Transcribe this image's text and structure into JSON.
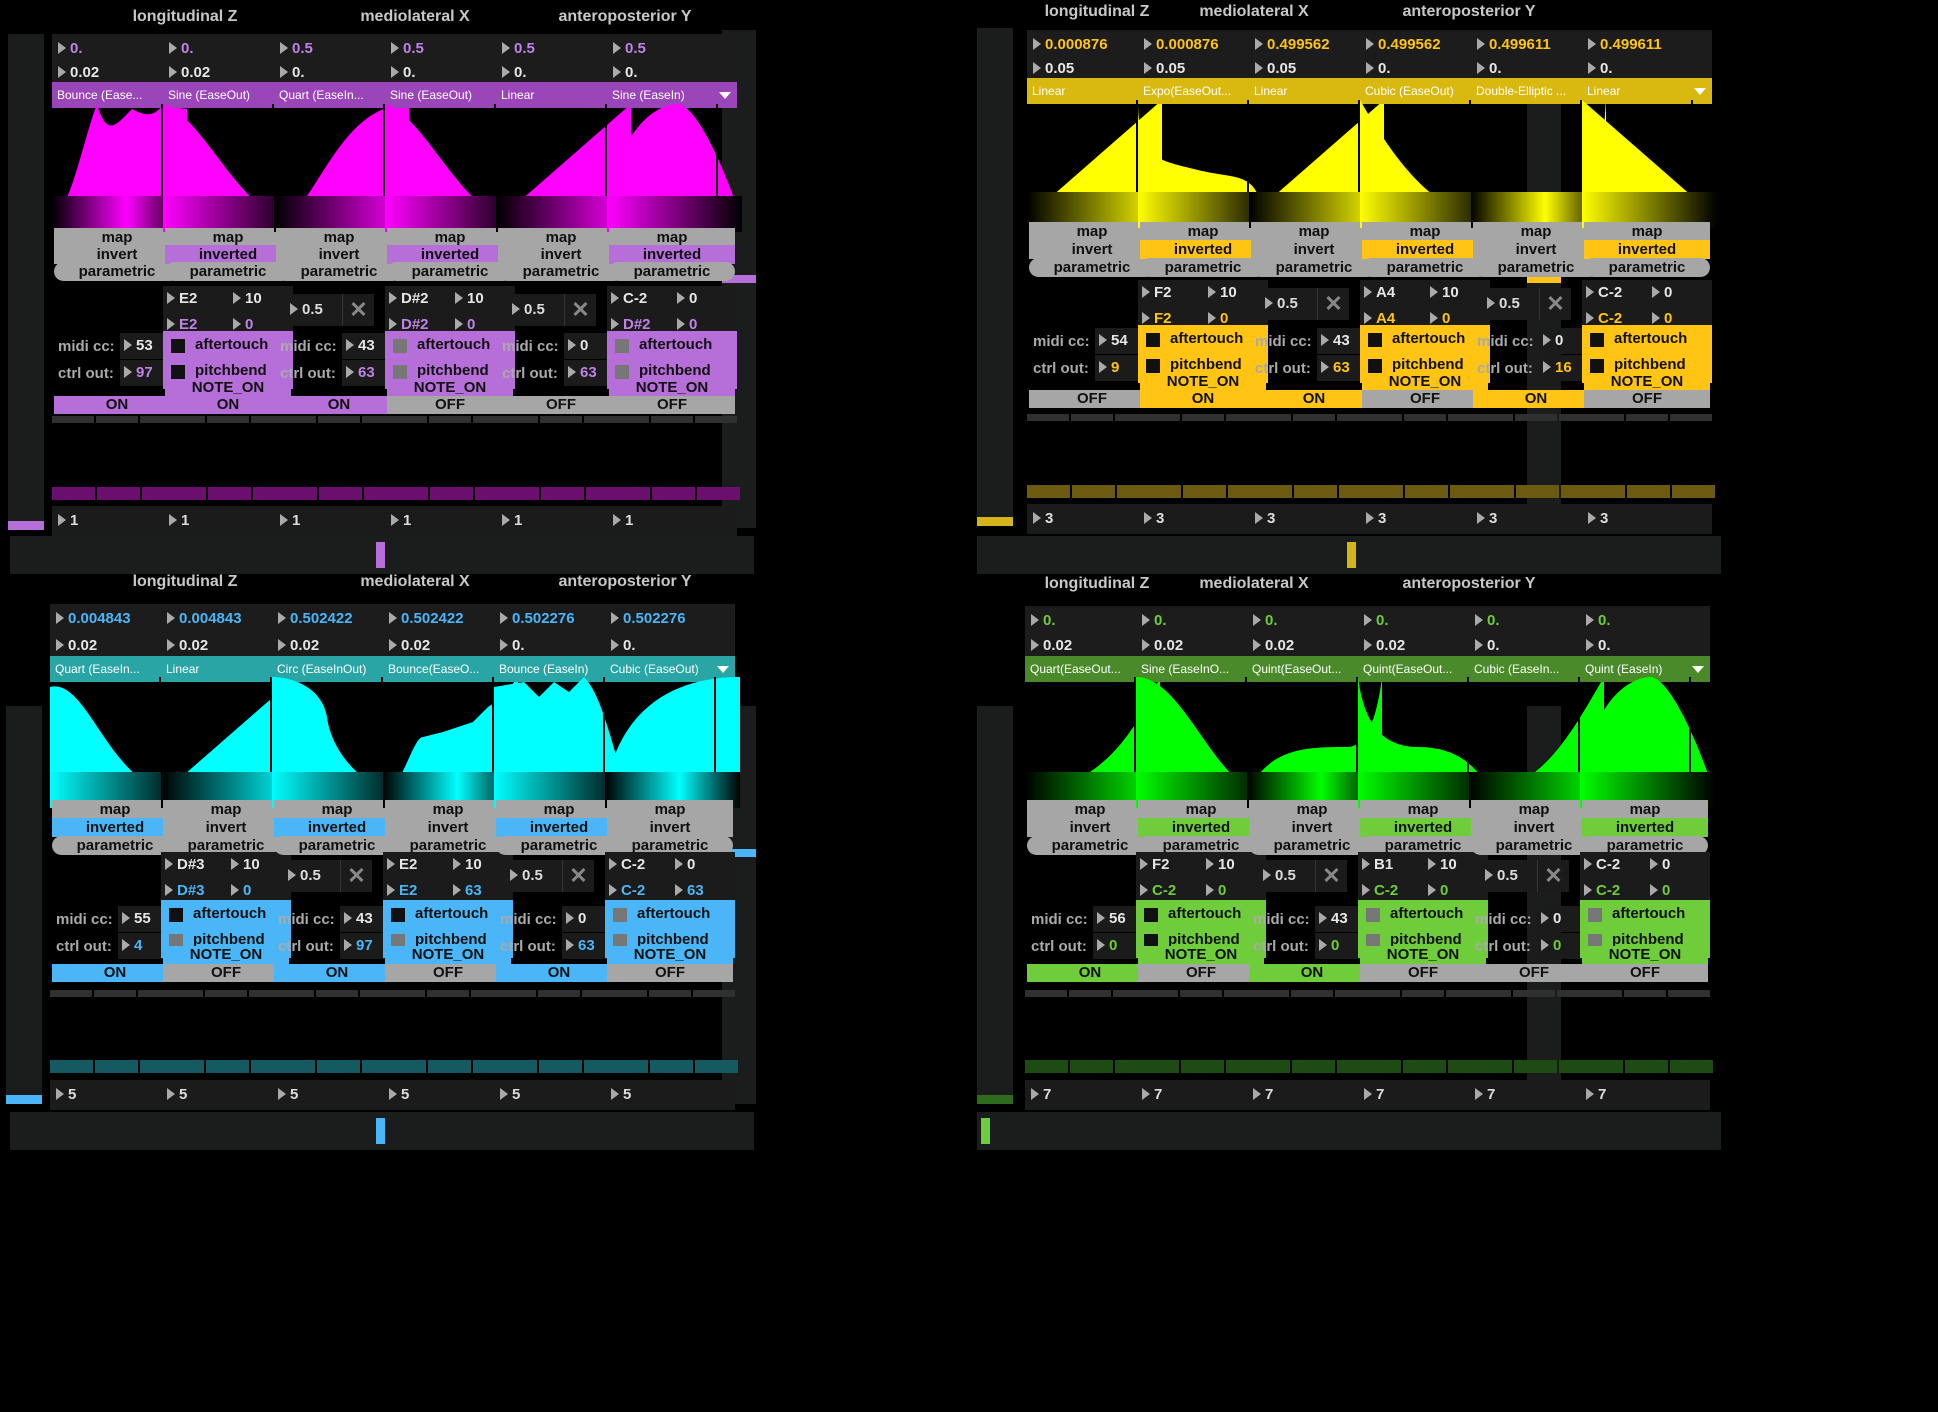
{
  "groups": [
    "longitudinal Z",
    "mediolateral X",
    "anteroposterior Y"
  ],
  "labels": {
    "map": "map",
    "invert": "invert",
    "inverted": "inverted",
    "parametric": "parametric",
    "aftertouch": "aftertouch",
    "pitchbend": "pitchbend",
    "note_on": "NOTE_ON",
    "on": "ON",
    "off": "OFF",
    "midi_cc": "midi cc:",
    "ctrl_out": "ctrl out:",
    "x": "✕"
  },
  "quadrants": [
    {
      "accent": "#ff00ff",
      "btn": "#b66fd9",
      "label": "#c082e6",
      "dim": "#6b0f6e",
      "channels": [
        {
          "v1": "0.",
          "v2": "0.02",
          "ease": "Bounce (Ease...",
          "inv": false,
          "cc": "53",
          "ctrl": "97",
          "on": true,
          "curve": "bounceout",
          "mode": "cc"
        },
        {
          "v1": "0.",
          "v2": "0.02",
          "ease": "Sine (EaseOut)",
          "inv": true,
          "n1": "E2",
          "n2": "E2",
          "a": "10",
          "b": "0",
          "at": true,
          "pb": true,
          "on": true,
          "curve": "down",
          "mode": "note"
        },
        {
          "v1": "0.5",
          "v2": "0.",
          "ease": "Quart (EaseIn...",
          "inv": false,
          "cc": "43",
          "ctrl": "63",
          "on": true,
          "curve": "up",
          "mode": "cc",
          "xv": "0.5"
        },
        {
          "v1": "0.5",
          "v2": "0.",
          "ease": "Sine (EaseOut)",
          "inv": true,
          "n1": "D#2",
          "n2": "D#2",
          "a": "10",
          "b": "0",
          "at": false,
          "pb": false,
          "on": false,
          "curve": "down",
          "mode": "note"
        },
        {
          "v1": "0.5",
          "v2": "0.",
          "ease": "Linear",
          "inv": false,
          "cc": "0",
          "ctrl": "63",
          "on": false,
          "curve": "linear",
          "mode": "cc",
          "xv": "0.5"
        },
        {
          "v1": "0.5",
          "v2": "0.",
          "ease": "Sine (EaseIn)",
          "inv": true,
          "n1": "C-2",
          "n2": "D#2",
          "a": "0",
          "b": "0",
          "at": false,
          "pb": false,
          "on": false,
          "curve": "dome",
          "mode": "note"
        }
      ],
      "chan": "1"
    },
    {
      "accent": "#ffff00",
      "btn": "#ffc414",
      "label": "#ffc414",
      "dim": "#6b5a10",
      "channels": [
        {
          "v1": "0.000876",
          "v2": "0.05",
          "ease": "Linear",
          "inv": false,
          "cc": "54",
          "ctrl": "9",
          "on": false,
          "curve": "linear",
          "mode": "cc"
        },
        {
          "v1": "0.000876",
          "v2": "0.05",
          "ease": "Expo(EaseOut...",
          "inv": true,
          "n1": "F2",
          "n2": "F2",
          "a": "10",
          "b": "0",
          "at": true,
          "pb": true,
          "on": true,
          "curve": "expo",
          "mode": "note"
        },
        {
          "v1": "0.499562",
          "v2": "0.05",
          "ease": "Linear",
          "inv": false,
          "cc": "43",
          "ctrl": "63",
          "on": true,
          "curve": "linear",
          "mode": "cc",
          "xv": "0.5"
        },
        {
          "v1": "0.499562",
          "v2": "0.",
          "ease": "Cubic (EaseOut)",
          "inv": true,
          "n1": "A4",
          "n2": "A4",
          "a": "10",
          "b": "0",
          "at": true,
          "pb": true,
          "on": false,
          "curve": "cubicdown",
          "mode": "note"
        },
        {
          "v1": "0.499611",
          "v2": "0.",
          "ease": "Double-Elliptic ...",
          "inv": false,
          "cc": "0",
          "ctrl": "16",
          "on": true,
          "curve": "ellip",
          "mode": "cc",
          "xv": "0.5"
        },
        {
          "v1": "0.499611",
          "v2": "0.",
          "ease": "Linear",
          "inv": true,
          "n1": "C-2",
          "n2": "C-2",
          "a": "0",
          "b": "0",
          "at": true,
          "pb": true,
          "on": false,
          "curve": "lindown",
          "mode": "note"
        }
      ],
      "chan": "3"
    },
    {
      "accent": "#00ffff",
      "btn": "#4ab6f7",
      "label": "#4ab6f7",
      "dim": "#145a60",
      "channels": [
        {
          "v1": "0.004843",
          "v2": "0.02",
          "ease": "Quart (EaseIn...",
          "inv": true,
          "cc": "55",
          "ctrl": "4",
          "on": true,
          "curve": "quartdown",
          "mode": "cc"
        },
        {
          "v1": "0.004843",
          "v2": "0.02",
          "ease": "Linear",
          "inv": false,
          "n1": "D#3",
          "n2": "D#3",
          "a": "10",
          "b": "0",
          "at": true,
          "pb": false,
          "on": false,
          "curve": "linear",
          "mode": "note"
        },
        {
          "v1": "0.502422",
          "v2": "0.02",
          "ease": "Circ (EaseInOut)",
          "inv": true,
          "cc": "43",
          "ctrl": "97",
          "on": true,
          "curve": "circdown",
          "mode": "cc",
          "xv": "0.5"
        },
        {
          "v1": "0.502422",
          "v2": "0.02",
          "ease": "Bounce(EaseO...",
          "inv": false,
          "n1": "E2",
          "n2": "E2",
          "a": "10",
          "b": "63",
          "at": true,
          "pb": false,
          "on": false,
          "curve": "bounceup",
          "mode": "note"
        },
        {
          "v1": "0.502276",
          "v2": "0.",
          "ease": "Bounce (EaseIn)",
          "inv": true,
          "cc": "0",
          "ctrl": "63",
          "on": true,
          "curve": "bounceflat",
          "mode": "cc",
          "xv": "0.5"
        },
        {
          "v1": "0.502276",
          "v2": "0.",
          "ease": "Cubic (EaseOut)",
          "inv": false,
          "n1": "C-2",
          "n2": "C-2",
          "a": "0",
          "b": "63",
          "at": false,
          "pb": false,
          "on": false,
          "curve": "cubicup",
          "mode": "note"
        }
      ],
      "chan": "5"
    },
    {
      "accent": "#00ff00",
      "btn": "#6fcc3a",
      "label": "#6fcc3a",
      "dim": "#1e4a14",
      "channels": [
        {
          "v1": "0.",
          "v2": "0.02",
          "ease": "Quart(EaseOut...",
          "inv": false,
          "cc": "56",
          "ctrl": "0",
          "on": true,
          "curve": "quartup",
          "mode": "cc"
        },
        {
          "v1": "0.",
          "v2": "0.02",
          "ease": "Sine (EaseInO...",
          "inv": true,
          "n1": "F2",
          "n2": "C-2",
          "a": "10",
          "b": "0",
          "at": true,
          "pb": true,
          "on": false,
          "curve": "sinedown",
          "mode": "note"
        },
        {
          "v1": "0.",
          "v2": "0.02",
          "ease": "Quint(EaseOut...",
          "inv": false,
          "cc": "43",
          "ctrl": "0",
          "on": true,
          "curve": "quintup",
          "mode": "cc",
          "xv": "0.5"
        },
        {
          "v1": "0.",
          "v2": "0.02",
          "ease": "Quint(EaseOut...",
          "inv": true,
          "n1": "B1",
          "n2": "C-2",
          "a": "10",
          "b": "0",
          "at": false,
          "pb": false,
          "on": false,
          "curve": "quintdown",
          "mode": "note"
        },
        {
          "v1": "0.",
          "v2": "0.",
          "ease": "Cubic (EaseIn...",
          "inv": false,
          "cc": "0",
          "ctrl": "0",
          "on": false,
          "curve": "cubicin",
          "mode": "cc",
          "xv": "0.5"
        },
        {
          "v1": "0.",
          "v2": "0.",
          "ease": "Quint (EaseIn)",
          "inv": true,
          "n1": "C-2",
          "n2": "C-2",
          "a": "0",
          "b": "0",
          "at": false,
          "pb": false,
          "on": false,
          "curve": "dome",
          "mode": "note"
        }
      ],
      "chan": "7"
    }
  ]
}
